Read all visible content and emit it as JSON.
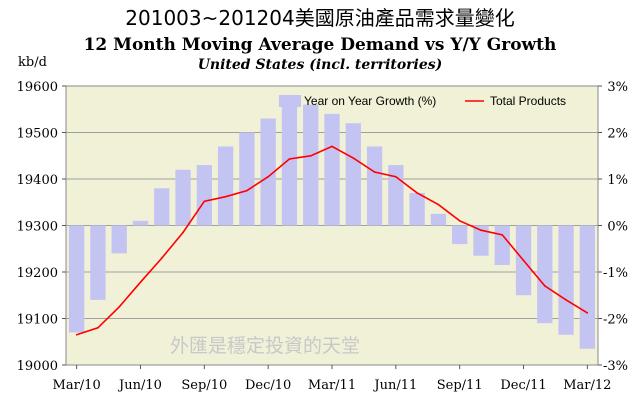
{
  "titles": {
    "main": "201003~201204美國原油產品需求量變化",
    "sub": "12 Month Moving Average Demand vs Y/Y Growth",
    "region": "United States (incl. territories)"
  },
  "watermark": "外匯是穩定投資的天堂",
  "chart_data": {
    "type": "bar",
    "left_axis": {
      "label": "kb/d",
      "ticks": [
        19000,
        19100,
        19200,
        19300,
        19400,
        19500,
        19600
      ],
      "ylim": [
        19000,
        19600
      ]
    },
    "right_axis": {
      "ticks": [
        "-3%",
        "-2%",
        "-1%",
        "0%",
        "1%",
        "2%",
        "3%"
      ],
      "ylim": [
        -3,
        3
      ]
    },
    "x_tick_labels": [
      "Mar/10",
      "Jun/10",
      "Sep/10",
      "Dec/10",
      "Mar/11",
      "Jun/11",
      "Sep/11",
      "Dec/11",
      "Mar/12"
    ],
    "categories": [
      "Mar/10",
      "Apr/10",
      "May/10",
      "Jun/10",
      "Jul/10",
      "Aug/10",
      "Sep/10",
      "Oct/10",
      "Nov/10",
      "Dec/10",
      "Jan/11",
      "Feb/11",
      "Mar/11",
      "Apr/11",
      "May/11",
      "Jun/11",
      "Jul/11",
      "Aug/11",
      "Sep/11",
      "Oct/11",
      "Nov/11",
      "Dec/11",
      "Jan/12",
      "Feb/12",
      "Mar/12"
    ],
    "series": [
      {
        "name": "Year on Year Growth (%)",
        "type": "bar",
        "axis": "right",
        "color": "#c4c4f2",
        "values": [
          -2.3,
          -1.6,
          -0.6,
          0.1,
          0.8,
          1.2,
          1.3,
          1.7,
          2.0,
          2.3,
          2.8,
          2.6,
          2.4,
          2.2,
          1.7,
          1.3,
          0.7,
          0.25,
          -0.4,
          -0.65,
          -0.85,
          -1.5,
          -2.1,
          -2.35,
          -2.65
        ]
      },
      {
        "name": "Total Products",
        "type": "line",
        "axis": "left",
        "color": "#ff0000",
        "values": [
          19065,
          19080,
          19125,
          19178,
          19230,
          19285,
          19352,
          19362,
          19375,
          19405,
          19443,
          19450,
          19470,
          19445,
          19415,
          19405,
          19370,
          19345,
          19310,
          19290,
          19280,
          19225,
          19170,
          19140,
          19112
        ]
      }
    ],
    "legend_position": "top-right",
    "grid": true
  }
}
